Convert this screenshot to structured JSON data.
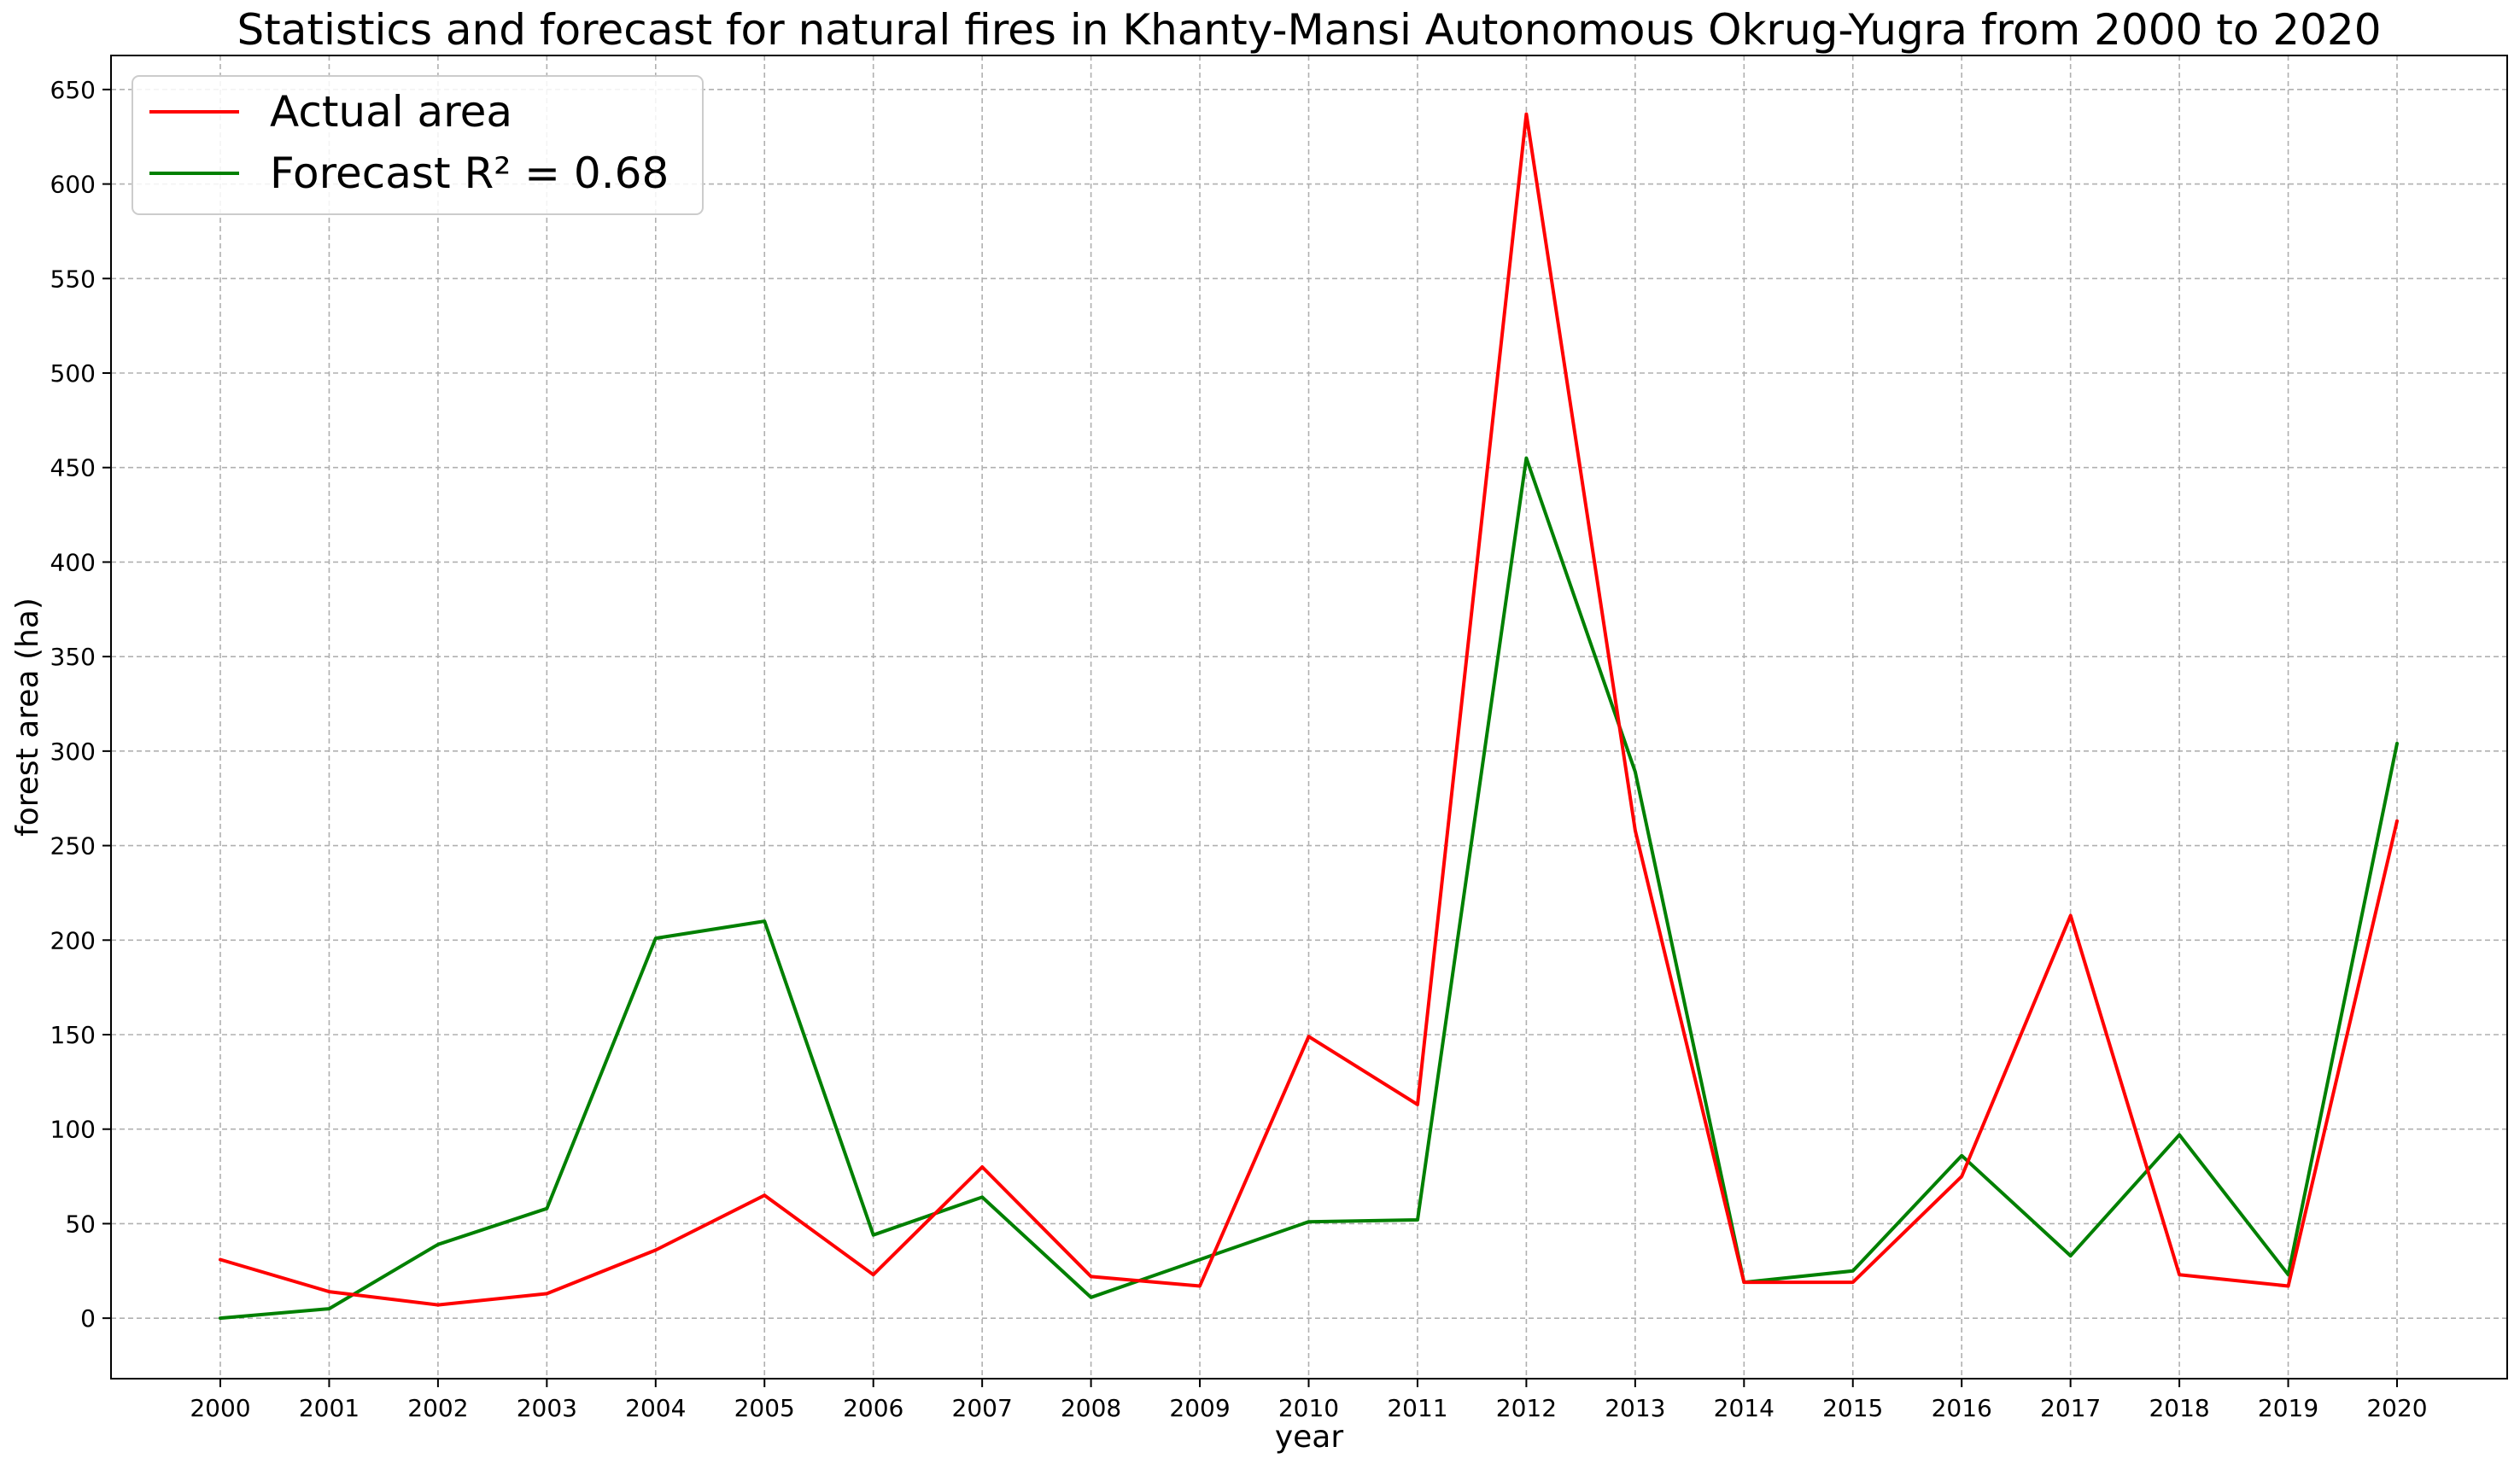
{
  "chart_data": {
    "type": "line",
    "title": "Statistics and forecast for natural fires in Khanty-Mansi Autonomous Okrug-Yugra from 2000 to 2020",
    "xlabel": "year",
    "ylabel": "forest area (ha)",
    "x": [
      "2000",
      "2001",
      "2002",
      "2003",
      "2004",
      "2005",
      "2006",
      "2007",
      "2008",
      "2009",
      "2010",
      "2011",
      "2012",
      "2013",
      "2014",
      "2015",
      "2016",
      "2017",
      "2018",
      "2019",
      "2020"
    ],
    "yticks": [
      "0",
      "50",
      "100",
      "150",
      "200",
      "250",
      "300",
      "350",
      "400",
      "450",
      "500",
      "550",
      "600",
      "650"
    ],
    "ylim": [
      -32,
      668
    ],
    "grid": true,
    "legend_position": "upper-left",
    "series": [
      {
        "name": "Actual area",
        "color": "#ff0000",
        "values": [
          31,
          14,
          7,
          13,
          36,
          65,
          23,
          80,
          22,
          17,
          149,
          113,
          637,
          258,
          19,
          19,
          75,
          213,
          23,
          17,
          263
        ]
      },
      {
        "name": "Forecast  R² = 0.68",
        "color": "#008000",
        "values": [
          0,
          5,
          39,
          58,
          201,
          210,
          44,
          64,
          11,
          31,
          51,
          52,
          455,
          289,
          19,
          25,
          86,
          33,
          97,
          23,
          304
        ]
      }
    ]
  }
}
